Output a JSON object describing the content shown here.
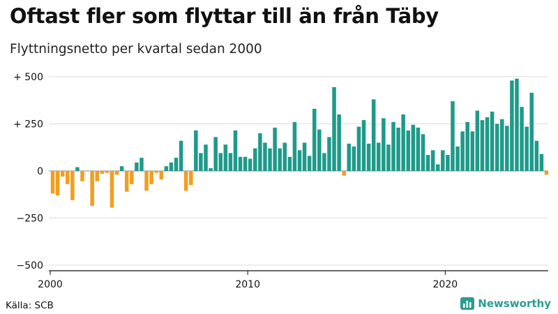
{
  "title": "Oftast fler som flyttar till än från Täby",
  "subtitle": "Flyttningsnetto per kvartal sedan 2000",
  "source": "Källa: SCB",
  "brand": "Newsworthy",
  "colors": {
    "positive": "#1f9a8a",
    "negative": "#f29e1f",
    "grid": "#dddddd",
    "axis": "#111111"
  },
  "chart_data": {
    "type": "bar",
    "title": "Oftast fler som flyttar till än från Täby",
    "subtitle": "Flyttningsnetto per kvartal sedan 2000",
    "xlabel": "",
    "ylabel": "",
    "ylim": [
      -500,
      500
    ],
    "yticks": [
      500,
      250,
      0,
      -250,
      -500
    ],
    "ytick_labels": [
      "+ 500",
      "+ 250",
      "0",
      "−250",
      "−500"
    ],
    "xticks": [
      2000,
      2010,
      2020
    ],
    "x_start_year": 2000,
    "x_end_year": 2025.25,
    "series_name": "Flyttningsnetto",
    "values": [
      -120,
      -130,
      -30,
      -70,
      -155,
      20,
      -55,
      0,
      -185,
      -55,
      -15,
      -10,
      -195,
      -20,
      25,
      -110,
      -70,
      45,
      70,
      -105,
      -70,
      -10,
      -45,
      25,
      45,
      70,
      160,
      -105,
      -75,
      215,
      95,
      140,
      15,
      180,
      95,
      140,
      95,
      215,
      75,
      75,
      65,
      120,
      200,
      150,
      120,
      230,
      120,
      150,
      75,
      260,
      110,
      150,
      80,
      330,
      220,
      95,
      180,
      445,
      300,
      -25,
      145,
      130,
      235,
      270,
      145,
      380,
      150,
      280,
      140,
      260,
      230,
      300,
      215,
      245,
      230,
      195,
      85,
      110,
      35,
      110,
      85,
      370,
      130,
      210,
      260,
      210,
      320,
      270,
      285,
      315,
      250,
      275,
      240,
      480,
      490,
      340,
      235,
      415,
      160,
      90,
      -20
    ]
  }
}
